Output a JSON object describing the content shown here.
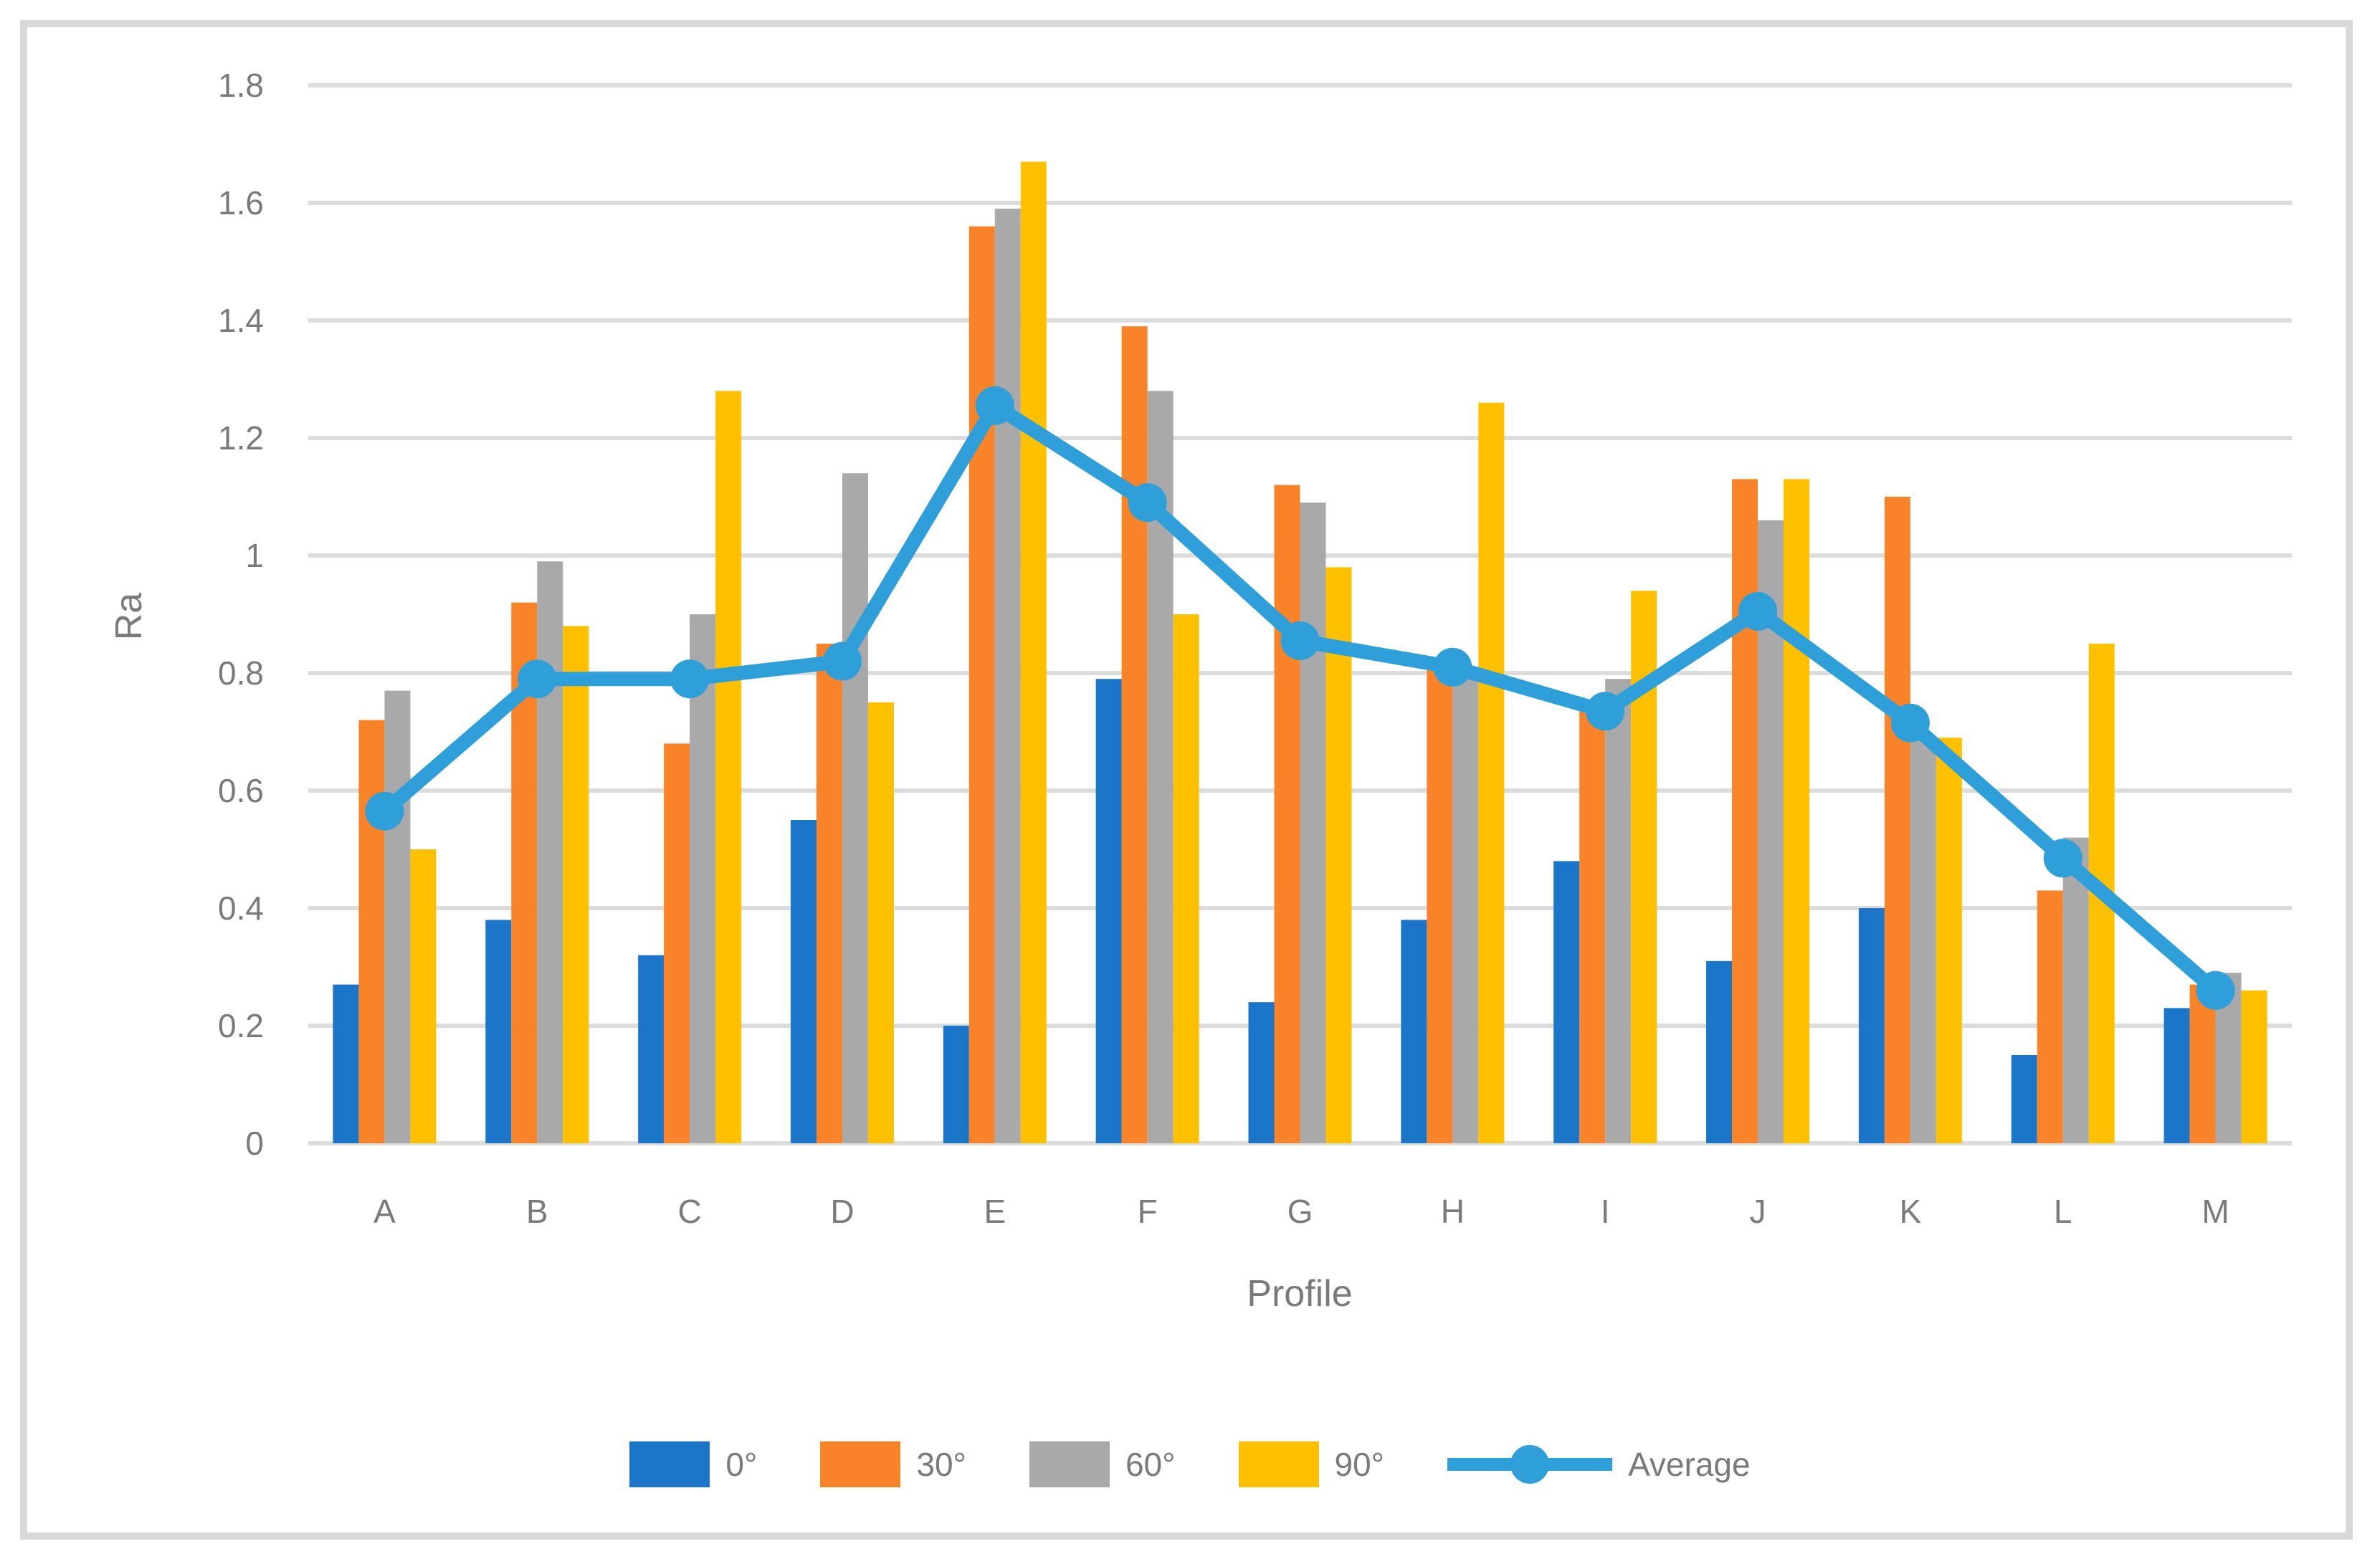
{
  "figure": {
    "background": "#FFFFFF",
    "border_color": "#D9D9D9"
  },
  "chart_data": {
    "type": "bar",
    "subtype": "grouped-bars-with-line-overlay",
    "title": "",
    "xlabel": "Profile",
    "ylabel": "Ra",
    "categories": [
      "A",
      "B",
      "C",
      "D",
      "E",
      "F",
      "G",
      "H",
      "I",
      "J",
      "K",
      "L",
      "M"
    ],
    "series": [
      {
        "name": "0°",
        "type": "bar",
        "color": "#1B76C9",
        "values": [
          0.27,
          0.38,
          0.32,
          0.55,
          0.2,
          0.79,
          0.24,
          0.38,
          0.48,
          0.31,
          0.4,
          0.15,
          0.23
        ]
      },
      {
        "name": "30°",
        "type": "bar",
        "color": "#F98329",
        "values": [
          0.72,
          0.92,
          0.68,
          0.85,
          1.56,
          1.39,
          1.12,
          0.81,
          0.74,
          1.13,
          1.1,
          0.43,
          0.27
        ]
      },
      {
        "name": "60°",
        "type": "bar",
        "color": "#A9A9A9",
        "values": [
          0.77,
          0.99,
          0.9,
          1.14,
          1.59,
          1.28,
          1.09,
          0.79,
          0.79,
          1.06,
          0.69,
          0.52,
          0.29
        ]
      },
      {
        "name": "90°",
        "type": "bar",
        "color": "#FFC000",
        "values": [
          0.5,
          0.88,
          1.28,
          0.75,
          1.67,
          0.9,
          0.98,
          1.26,
          0.94,
          1.13,
          0.69,
          0.85,
          0.26
        ]
      },
      {
        "name": "Average",
        "type": "line",
        "color": "#2E9FD9",
        "values": [
          0.565,
          0.79,
          0.79,
          0.82,
          1.255,
          1.09,
          0.855,
          0.81,
          0.735,
          0.905,
          0.715,
          0.485,
          0.26
        ]
      }
    ],
    "y_ticks": [
      "0",
      "0.2",
      "0.4",
      "0.6",
      "0.8",
      "1",
      "1.2",
      "1.4",
      "1.6",
      "1.8"
    ],
    "ylim": [
      0,
      1.8
    ],
    "grid": true,
    "gridline_color": "#DCDCDC",
    "text_color": "#7A7A7A",
    "legend_position": "bottom"
  }
}
